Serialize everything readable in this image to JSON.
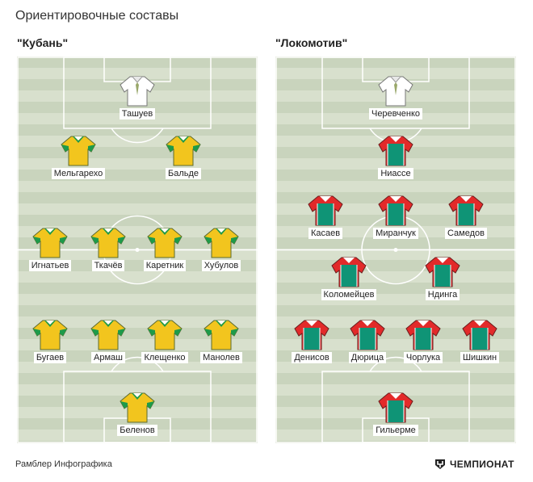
{
  "title": "Ориентировочные составы",
  "teams": [
    {
      "name": "\"Кубань\"",
      "players": [
        {
          "name": "Ташуев",
          "kit": "white"
        },
        {
          "name": "Мельгарехо",
          "kit": "kuban"
        },
        {
          "name": "Бальде",
          "kit": "kuban"
        },
        {
          "name": "Игнатьев",
          "kit": "kuban"
        },
        {
          "name": "Ткачёв",
          "kit": "kuban"
        },
        {
          "name": "Каретник",
          "kit": "kuban"
        },
        {
          "name": "Хубулов",
          "kit": "kuban"
        },
        {
          "name": "Бугаев",
          "kit": "kuban"
        },
        {
          "name": "Армаш",
          "kit": "kuban"
        },
        {
          "name": "Клещенко",
          "kit": "kuban"
        },
        {
          "name": "Манолев",
          "kit": "kuban"
        },
        {
          "name": "Беленов",
          "kit": "kuban"
        }
      ]
    },
    {
      "name": "\"Локомотив\"",
      "players": [
        {
          "name": "Черевченко",
          "kit": "white"
        },
        {
          "name": "Ниассе",
          "kit": "lokomotiv"
        },
        {
          "name": "Касаев",
          "kit": "lokomotiv"
        },
        {
          "name": "Миранчук",
          "kit": "lokomotiv"
        },
        {
          "name": "Самедов",
          "kit": "lokomotiv"
        },
        {
          "name": "Коломейцев",
          "kit": "lokomotiv"
        },
        {
          "name": "Ндинга",
          "kit": "lokomotiv"
        },
        {
          "name": "Денисов",
          "kit": "lokomotiv"
        },
        {
          "name": "Дюрица",
          "kit": "lokomotiv"
        },
        {
          "name": "Чорлука",
          "kit": "lokomotiv"
        },
        {
          "name": "Шишкин",
          "kit": "lokomotiv"
        },
        {
          "name": "Гильерме",
          "kit": "lokomotiv"
        }
      ]
    }
  ],
  "footer": "Рамблер Инфографика",
  "brand": {
    "name": "ЧЕМПИОНАТ",
    "icon": "championat-logo-icon"
  },
  "colors": {
    "field_dark": "#c9d4bd",
    "field_light": "#d8e0cd",
    "kuban_yellow": "#f2c51e",
    "kuban_green": "#1e9a4a",
    "loko_red": "#e22a2a",
    "loko_green": "#0f9476",
    "coach_white": "#ffffff"
  }
}
